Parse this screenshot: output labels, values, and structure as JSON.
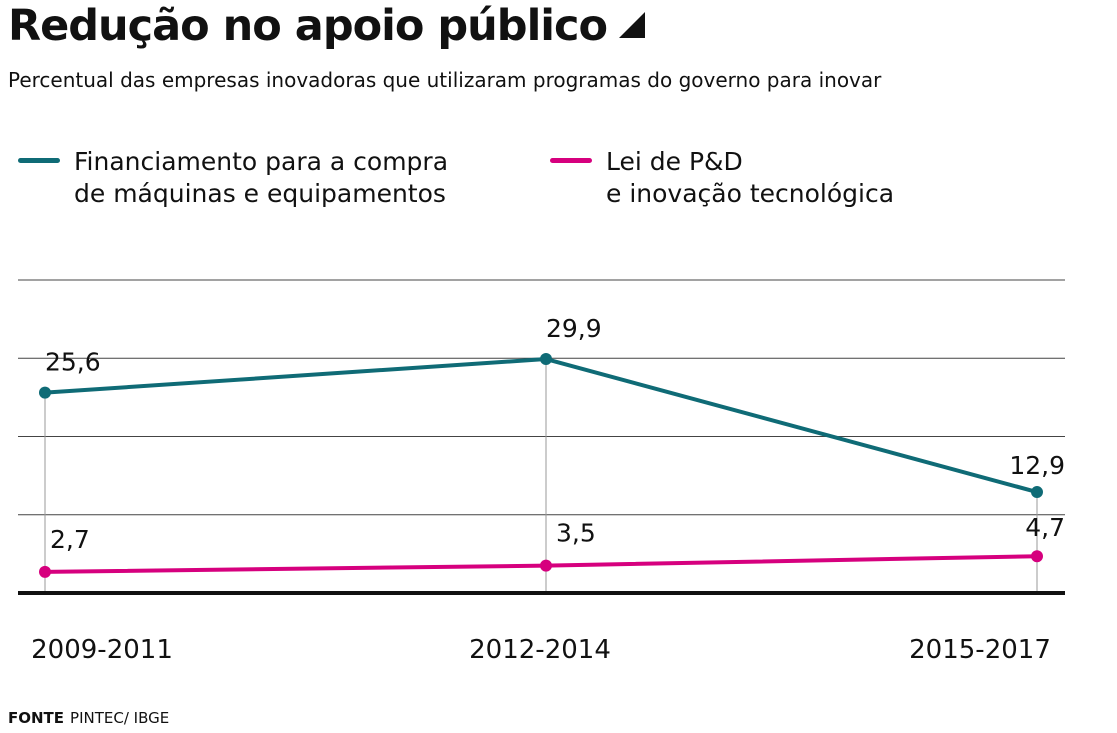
{
  "title": "Redução no apoio público",
  "subtitle": "Percentual das empresas inovadoras que utilizaram programas do governo para inovar",
  "source": {
    "label": "FONTE",
    "text": "PINTEC/ IBGE"
  },
  "chart_data": {
    "type": "line",
    "categories": [
      "2009-2011",
      "2012-2014",
      "2015-2017"
    ],
    "ylim": [
      0,
      40
    ],
    "grid": true,
    "legend_position": "top",
    "series": [
      {
        "name": "Financiamento para a compra\nde máquinas e equipamentos",
        "values": [
          25.6,
          29.9,
          12.9
        ],
        "labels": [
          "25,6",
          "29,9",
          "12,9"
        ],
        "color": "#0f6b76"
      },
      {
        "name": "Lei de P&D\ne inovação tecnológica",
        "values": [
          2.7,
          3.5,
          4.7
        ],
        "labels": [
          "2,7",
          "3,5",
          "4,7"
        ],
        "color": "#d6007e"
      }
    ]
  }
}
